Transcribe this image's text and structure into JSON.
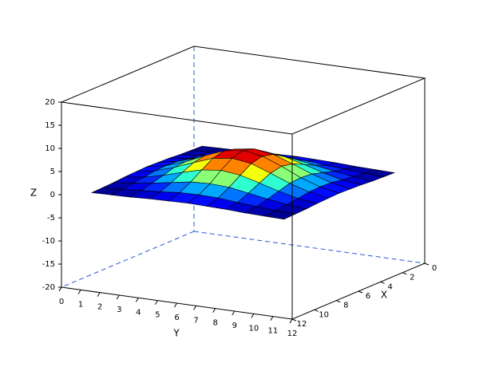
{
  "chart_data": {
    "type": "surface",
    "xlabel": "X",
    "ylabel": "Y",
    "zlabel": "Z",
    "x": [
      1,
      2,
      3,
      4,
      5,
      6,
      7,
      8,
      9,
      10,
      11
    ],
    "y": [
      1,
      2,
      3,
      4,
      5,
      6,
      7,
      8,
      9,
      10,
      11
    ],
    "z": [
      [
        0.0,
        0.1,
        0.2,
        0.4,
        0.5,
        0.6,
        0.5,
        0.4,
        0.2,
        0.1,
        0.0
      ],
      [
        0.1,
        0.3,
        0.6,
        0.9,
        1.3,
        1.4,
        1.3,
        0.9,
        0.6,
        0.3,
        0.1
      ],
      [
        0.2,
        0.6,
        1.2,
        1.9,
        2.6,
        2.8,
        2.6,
        1.9,
        1.2,
        0.6,
        0.2
      ],
      [
        0.4,
        0.9,
        1.9,
        3.1,
        4.2,
        4.7,
        4.2,
        3.1,
        1.9,
        0.9,
        0.4
      ],
      [
        0.5,
        1.3,
        2.6,
        4.2,
        5.7,
        6.3,
        5.7,
        4.2,
        2.6,
        1.3,
        0.5
      ],
      [
        0.6,
        1.4,
        2.8,
        4.7,
        6.3,
        7.0,
        6.3,
        4.7,
        2.8,
        1.4,
        0.6
      ],
      [
        0.5,
        1.3,
        2.6,
        4.2,
        5.7,
        6.3,
        5.7,
        4.2,
        2.6,
        1.3,
        0.5
      ],
      [
        0.4,
        0.9,
        1.9,
        3.1,
        4.2,
        4.7,
        4.2,
        3.1,
        1.9,
        0.9,
        0.4
      ],
      [
        0.2,
        0.6,
        1.2,
        1.9,
        2.6,
        2.8,
        2.6,
        1.9,
        1.2,
        0.6,
        0.2
      ],
      [
        0.1,
        0.3,
        0.6,
        0.9,
        1.3,
        1.4,
        1.3,
        0.9,
        0.6,
        0.3,
        0.1
      ],
      [
        0.0,
        0.1,
        0.2,
        0.4,
        0.5,
        0.6,
        0.5,
        0.4,
        0.2,
        0.1,
        0.0
      ]
    ],
    "colormap": "jet",
    "xlim": [
      0,
      12
    ],
    "ylim": [
      0,
      12
    ],
    "zlim": [
      -20,
      20
    ],
    "xticks": [
      0,
      2,
      4,
      6,
      8,
      10,
      12
    ],
    "yticks": [
      0,
      1,
      2,
      3,
      4,
      5,
      6,
      7,
      8,
      9,
      10,
      11,
      12
    ],
    "zticks": [
      -20,
      -15,
      -10,
      -5,
      0,
      5,
      10,
      15,
      20
    ]
  }
}
